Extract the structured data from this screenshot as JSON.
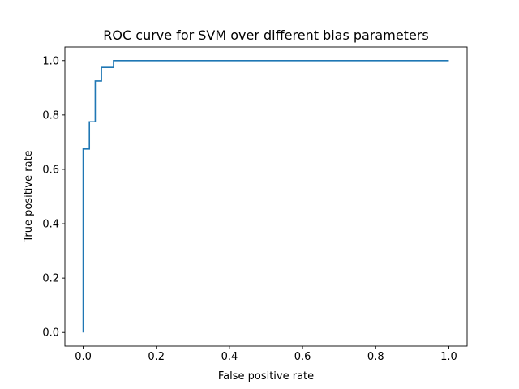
{
  "chart_data": {
    "type": "line",
    "title": "ROC curve for SVM over different bias parameters",
    "xlabel": "False positive rate",
    "ylabel": "True positive rate",
    "xlim": [
      -0.05,
      1.05
    ],
    "ylim": [
      -0.05,
      1.05
    ],
    "xticks": [
      "0.0",
      "0.2",
      "0.4",
      "0.6",
      "0.8",
      "1.0"
    ],
    "yticks": [
      "0.0",
      "0.2",
      "0.4",
      "0.6",
      "0.8",
      "1.0"
    ],
    "grid": false,
    "legend": false,
    "series": [
      {
        "color": "#1f77b4",
        "x": [
          0.0,
          0.0,
          0.017,
          0.017,
          0.033,
          0.033,
          0.05,
          0.05,
          0.083,
          0.083,
          1.0
        ],
        "y": [
          0.0,
          0.675,
          0.675,
          0.775,
          0.775,
          0.925,
          0.925,
          0.975,
          0.975,
          1.0,
          1.0
        ]
      }
    ]
  }
}
